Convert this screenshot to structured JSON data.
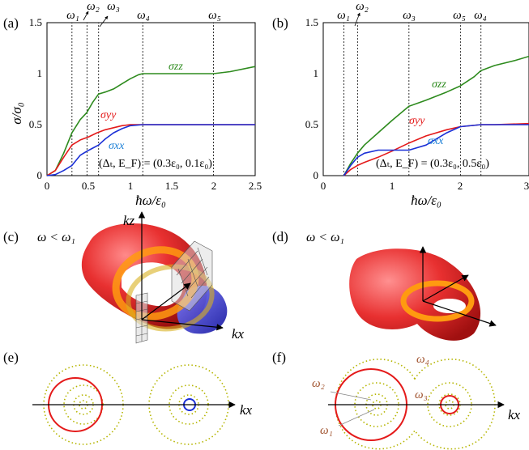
{
  "panels": {
    "a": {
      "label": "(a)",
      "ylabel": "σ/σ₀",
      "xlabel": "ħω/ε₀",
      "annotation": "(Δₜ, E_F) = (0.3ε₀, 0.1ε₀)",
      "omega_labels": [
        "ω₁",
        "ω₂",
        "ω₃",
        "ω₄",
        "ω₅"
      ],
      "series_labels": {
        "zz": "σzz",
        "yy": "σyy",
        "xx": "σxx"
      },
      "yticks": [
        "0",
        "0.5",
        "1",
        "1.5"
      ],
      "xticks": [
        "0",
        "0.5",
        "1",
        "1.5",
        "2",
        "2.5"
      ]
    },
    "b": {
      "label": "(b)",
      "xlabel": "ħω/ε₀",
      "annotation": "(Δₜ, E_F) = (0.3ε₀, 0.5ε₀)",
      "omega_labels": [
        "ω₁",
        "ω₂",
        "ω₃",
        "ω₅",
        "ω₄"
      ],
      "series_labels": {
        "zz": "σzz",
        "yy": "σyy",
        "xx": "σxx"
      },
      "yticks": [
        "0",
        "0.5",
        "1",
        "1.5"
      ],
      "xticks": [
        "0",
        "1",
        "2",
        "3"
      ]
    },
    "c": {
      "label": "(c)",
      "condition": "ω < ω₁",
      "axis_kz": "kz",
      "axis_kx": "kx"
    },
    "d": {
      "label": "(d)",
      "condition": "ω < ω₁"
    },
    "e": {
      "label": "(e)",
      "axis_kx": "kx"
    },
    "f": {
      "label": "(f)",
      "axis_kx": "kx",
      "omega_labels": [
        "ω₄",
        "ω₂",
        "ω₃",
        "ω₁"
      ]
    }
  },
  "colors": {
    "zz": "#2e8b1e",
    "yy": "#e41a1a",
    "xx": "#1a2fd6",
    "dotted": "#b5b500",
    "torus": "#e83030",
    "ring": "#ff9a10",
    "xx_text": "#1a7fd6",
    "brown": "#a0522d"
  },
  "chart_data": [
    {
      "type": "line",
      "panel": "a",
      "xlabel": "ħω/ε₀",
      "ylabel": "σ/σ₀",
      "xlim": [
        0,
        2.5
      ],
      "ylim": [
        0,
        1.5
      ],
      "vlines": [
        0.3,
        0.48,
        0.62,
        1.15,
        2.0
      ],
      "series": [
        {
          "name": "σzz",
          "x": [
            0,
            0.1,
            0.2,
            0.3,
            0.4,
            0.48,
            0.55,
            0.62,
            0.7,
            0.8,
            0.9,
            1.0,
            1.1,
            1.15,
            1.5,
            2.0,
            2.2,
            2.5
          ],
          "y": [
            0,
            0.05,
            0.22,
            0.42,
            0.55,
            0.62,
            0.72,
            0.8,
            0.82,
            0.85,
            0.9,
            0.95,
            0.99,
            1.0,
            1.0,
            1.0,
            1.02,
            1.07
          ]
        },
        {
          "name": "σyy",
          "x": [
            0,
            0.1,
            0.2,
            0.3,
            0.4,
            0.5,
            0.6,
            0.7,
            0.8,
            0.9,
            1.0,
            1.15,
            1.5,
            2.0,
            2.5
          ],
          "y": [
            0,
            0.05,
            0.18,
            0.3,
            0.35,
            0.38,
            0.42,
            0.45,
            0.47,
            0.49,
            0.5,
            0.5,
            0.5,
            0.5,
            0.5
          ]
        },
        {
          "name": "σxx",
          "x": [
            0,
            0.1,
            0.2,
            0.3,
            0.4,
            0.48,
            0.55,
            0.62,
            0.7,
            0.8,
            0.9,
            1.0,
            1.15,
            1.5,
            2.0,
            2.5
          ],
          "y": [
            0,
            0.01,
            0.05,
            0.1,
            0.2,
            0.24,
            0.27,
            0.3,
            0.36,
            0.42,
            0.46,
            0.49,
            0.5,
            0.5,
            0.5,
            0.5
          ]
        }
      ]
    },
    {
      "type": "line",
      "panel": "b",
      "xlabel": "ħω/ε₀",
      "xlim": [
        0,
        3
      ],
      "ylim": [
        0,
        1.5
      ],
      "vlines": [
        0.3,
        0.5,
        1.25,
        2.0,
        2.3
      ],
      "series": [
        {
          "name": "σzz",
          "x": [
            0.3,
            0.4,
            0.5,
            0.6,
            0.8,
            1.0,
            1.25,
            1.5,
            1.8,
            2.0,
            2.2,
            2.3,
            2.5,
            2.8,
            3.0
          ],
          "y": [
            0,
            0.12,
            0.22,
            0.3,
            0.42,
            0.54,
            0.68,
            0.74,
            0.82,
            0.88,
            0.97,
            1.03,
            1.08,
            1.13,
            1.17
          ]
        },
        {
          "name": "σyy",
          "x": [
            0.3,
            0.4,
            0.5,
            0.6,
            0.8,
            1.0,
            1.25,
            1.5,
            1.8,
            2.0,
            2.3,
            2.5,
            3.0
          ],
          "y": [
            0,
            0.06,
            0.1,
            0.13,
            0.18,
            0.24,
            0.32,
            0.39,
            0.45,
            0.48,
            0.5,
            0.5,
            0.51
          ]
        },
        {
          "name": "σxx",
          "x": [
            0.3,
            0.4,
            0.5,
            0.6,
            0.8,
            1.0,
            1.25,
            1.5,
            1.8,
            2.0,
            2.3,
            2.5,
            3.0
          ],
          "y": [
            0,
            0.1,
            0.18,
            0.22,
            0.25,
            0.25,
            0.25,
            0.3,
            0.42,
            0.48,
            0.5,
            0.5,
            0.5
          ]
        }
      ]
    }
  ]
}
